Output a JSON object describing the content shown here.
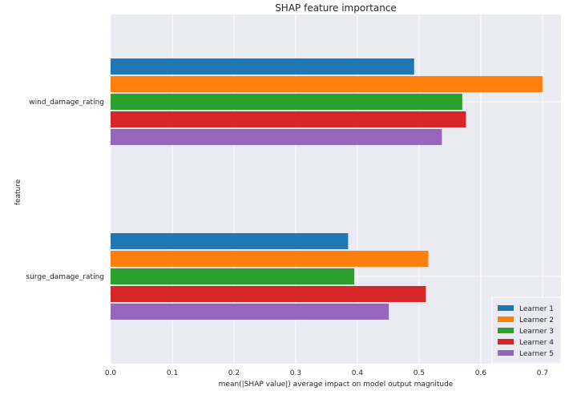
{
  "chart_data": {
    "type": "bar",
    "orientation": "horizontal",
    "title": "SHAP feature importance",
    "xlabel": "mean(|SHAP value|) average impact on model output magnitude",
    "ylabel": "feature",
    "categories": [
      "wind_damage_rating",
      "surge_damage_rating"
    ],
    "xlim": [
      0.0,
      0.73
    ],
    "xticks": [
      "0.0",
      "0.1",
      "0.2",
      "0.3",
      "0.4",
      "0.5",
      "0.6",
      "0.7"
    ],
    "grid": true,
    "legend_position": "lower-right",
    "series": [
      {
        "name": "Learner 1",
        "color": "#1f77b4",
        "values": [
          0.492,
          0.385
        ]
      },
      {
        "name": "Learner 2",
        "color": "#ff7f0e",
        "values": [
          0.7,
          0.515
        ]
      },
      {
        "name": "Learner 3",
        "color": "#2ca02c",
        "values": [
          0.57,
          0.395
        ]
      },
      {
        "name": "Learner 4",
        "color": "#d62728",
        "values": [
          0.576,
          0.511
        ]
      },
      {
        "name": "Learner 5",
        "color": "#9467bd",
        "values": [
          0.537,
          0.451
        ]
      }
    ]
  }
}
